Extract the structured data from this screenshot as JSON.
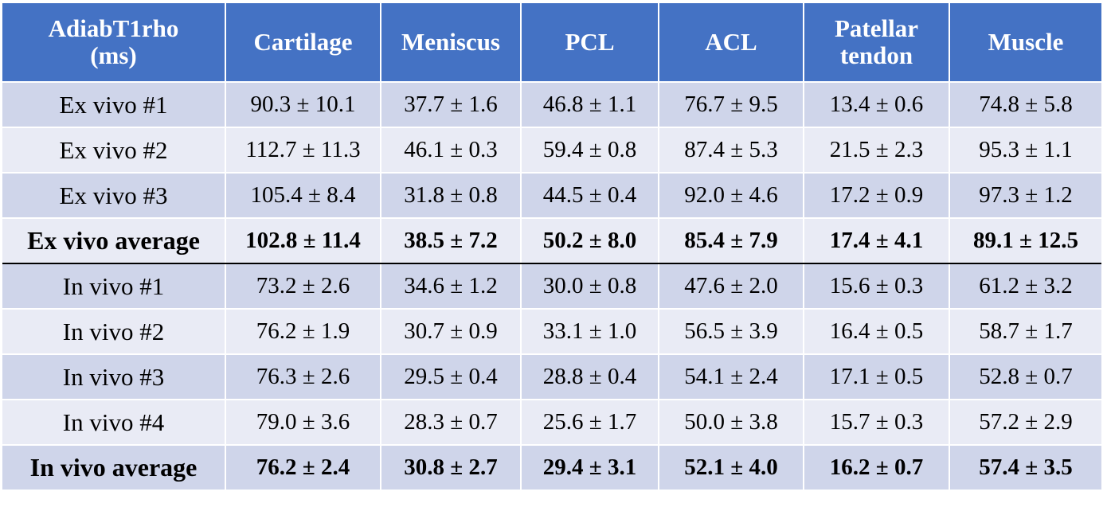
{
  "table": {
    "header": [
      "AdiabT1rho (ms)",
      "Cartilage",
      "Meniscus",
      "PCL",
      "ACL",
      "Patellar tendon",
      "Muscle"
    ],
    "header_lines": [
      [
        "AdiabT1rho",
        "(ms)"
      ],
      [
        "Cartilage"
      ],
      [
        "Meniscus"
      ],
      [
        "PCL"
      ],
      [
        "ACL"
      ],
      [
        "Patellar",
        "tendon"
      ],
      [
        "Muscle"
      ]
    ],
    "rows": [
      {
        "label": "Ex vivo #1",
        "values": [
          "90.3 ± 10.1",
          "37.7 ± 1.6",
          "46.8 ± 1.1",
          "76.7 ± 9.5",
          "13.4 ± 0.6",
          "74.8 ± 5.8"
        ],
        "bold": false
      },
      {
        "label": "Ex vivo #2",
        "values": [
          "112.7 ± 11.3",
          "46.1 ± 0.3",
          "59.4 ± 0.8",
          "87.4 ± 5.3",
          "21.5 ± 2.3",
          "95.3 ± 1.1"
        ],
        "bold": false
      },
      {
        "label": "Ex vivo #3",
        "values": [
          "105.4 ± 8.4",
          "31.8 ± 0.8",
          "44.5 ± 0.4",
          "92.0 ± 4.6",
          "17.2 ± 0.9",
          "97.3 ± 1.2"
        ],
        "bold": false
      },
      {
        "label": "Ex vivo average",
        "values": [
          "102.8 ± 11.4",
          "38.5 ± 7.2",
          "50.2 ± 8.0",
          "85.4 ± 7.9",
          "17.4 ± 4.1",
          "89.1 ± 12.5"
        ],
        "bold": true
      },
      {
        "label": "In vivo #1",
        "values": [
          "73.2 ± 2.6",
          "34.6 ± 1.2",
          "30.0 ± 0.8",
          "47.6 ± 2.0",
          "15.6 ± 0.3",
          "61.2 ± 3.2"
        ],
        "bold": false
      },
      {
        "label": "In vivo #2",
        "values": [
          "76.2 ± 1.9",
          "30.7 ± 0.9",
          "33.1 ± 1.0",
          "56.5 ± 3.9",
          "16.4 ± 0.5",
          "58.7 ± 1.7"
        ],
        "bold": false
      },
      {
        "label": "In vivo #3",
        "values": [
          "76.3 ± 2.6",
          "29.5 ± 0.4",
          "28.8 ± 0.4",
          "54.1 ± 2.4",
          "17.1 ± 0.5",
          "52.8 ± 0.7"
        ],
        "bold": false
      },
      {
        "label": "In vivo #4",
        "values": [
          "79.0 ± 3.6",
          "28.3 ± 0.7",
          "25.6 ± 1.7",
          "50.0 ± 3.8",
          "15.7 ± 0.3",
          "57.2 ± 2.9"
        ],
        "bold": false
      },
      {
        "label": "In vivo average",
        "values": [
          "76.2 ± 2.4",
          "30.8 ± 2.7",
          "29.4 ± 3.1",
          "52.1 ± 4.0",
          "16.2 ± 0.7",
          "57.4 ± 3.5"
        ],
        "bold": true
      }
    ],
    "colors": {
      "header_bg": "#4472c4",
      "header_text": "#ffffff",
      "row_dark": "#cfd5ea",
      "row_light": "#e9ebf5",
      "cell_border": "#ffffff",
      "divider": "#000000"
    }
  }
}
